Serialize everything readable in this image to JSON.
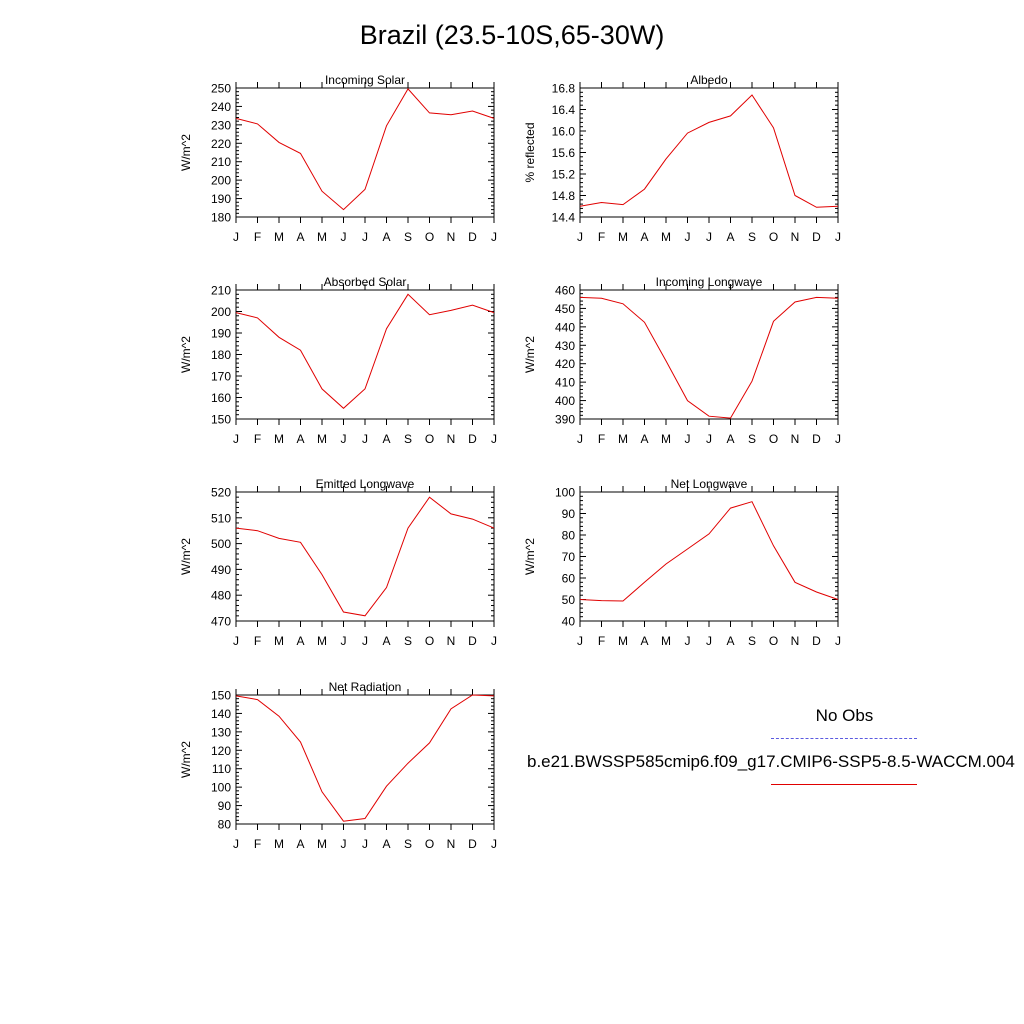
{
  "title": "Brazil (23.5-10S,65-30W)",
  "months": [
    "J",
    "F",
    "M",
    "A",
    "M",
    "J",
    "J",
    "A",
    "S",
    "O",
    "N",
    "D",
    "J"
  ],
  "legend": {
    "obs_label": "No Obs",
    "obs_color": "#5a5ae0",
    "model_label": "b.e21.BWSSP585cmip6.f09_g17.CMIP6-SSP5-8.5-WACCM.004",
    "model_color": "#e00000"
  },
  "chart_data": [
    {
      "type": "line",
      "title": "Incoming Solar",
      "ylabel": "W/m^2",
      "ylim": [
        180,
        250
      ],
      "yticks": [
        180,
        190,
        200,
        210,
        220,
        230,
        240,
        250
      ],
      "series": [
        {
          "values": [
            233.5,
            230.5,
            220.5,
            214.5,
            194,
            184,
            195,
            229.5,
            249.5,
            236.5,
            235.5,
            237.5,
            233.5
          ]
        }
      ]
    },
    {
      "type": "line",
      "title": "Albedo",
      "ylabel": "% reflected",
      "ylim": [
        14.4,
        16.8
      ],
      "yticks": [
        "14.4",
        "14.8",
        "15.2",
        "15.6",
        "16.0",
        "16.4",
        "16.8"
      ],
      "series": [
        {
          "values": [
            14.6,
            14.67,
            14.63,
            14.92,
            15.48,
            15.96,
            16.16,
            16.28,
            16.67,
            16.06,
            14.8,
            14.58,
            14.6
          ]
        }
      ]
    },
    {
      "type": "line",
      "title": "Absorbed Solar",
      "ylabel": "W/m^2",
      "ylim": [
        150,
        210
      ],
      "yticks": [
        150,
        160,
        170,
        180,
        190,
        200,
        210
      ],
      "series": [
        {
          "values": [
            199.5,
            197,
            188,
            182,
            164,
            155,
            164,
            192,
            208,
            198.5,
            200.5,
            203,
            199.5
          ]
        }
      ]
    },
    {
      "type": "line",
      "title": "Incoming Longwave",
      "ylabel": "W/m^2",
      "ylim": [
        390,
        460
      ],
      "yticks": [
        390,
        400,
        410,
        420,
        430,
        440,
        450,
        460
      ],
      "series": [
        {
          "values": [
            456,
            455.5,
            452.5,
            442.5,
            421.5,
            400,
            391.5,
            390.5,
            410.5,
            443,
            453.5,
            456,
            455.5
          ]
        }
      ]
    },
    {
      "type": "line",
      "title": "Emitted Longwave",
      "ylabel": "W/m^2",
      "ylim": [
        470,
        520
      ],
      "yticks": [
        470,
        480,
        490,
        500,
        510,
        520
      ],
      "series": [
        {
          "values": [
            506,
            505,
            502,
            500.5,
            488,
            473.5,
            472,
            483,
            506,
            518,
            511.5,
            509.5,
            506
          ]
        }
      ]
    },
    {
      "type": "line",
      "title": "Net Longwave",
      "ylabel": "W/m^2",
      "ylim": [
        40,
        100
      ],
      "yticks": [
        40,
        50,
        60,
        70,
        80,
        90,
        100
      ],
      "series": [
        {
          "values": [
            50,
            49.5,
            49.3,
            58,
            66.5,
            73.5,
            80.5,
            92.5,
            95.5,
            75,
            58,
            53.5,
            50
          ]
        }
      ]
    },
    {
      "type": "line",
      "title": "Net Radiation",
      "ylabel": "W/m^2",
      "ylim": [
        80,
        150
      ],
      "yticks": [
        80,
        90,
        100,
        110,
        120,
        130,
        140,
        150
      ],
      "series": [
        {
          "values": [
            149.5,
            147.5,
            138.5,
            124.5,
            97.5,
            81.5,
            83,
            100.5,
            113,
            124,
            142.5,
            150,
            149.5
          ]
        }
      ]
    }
  ]
}
